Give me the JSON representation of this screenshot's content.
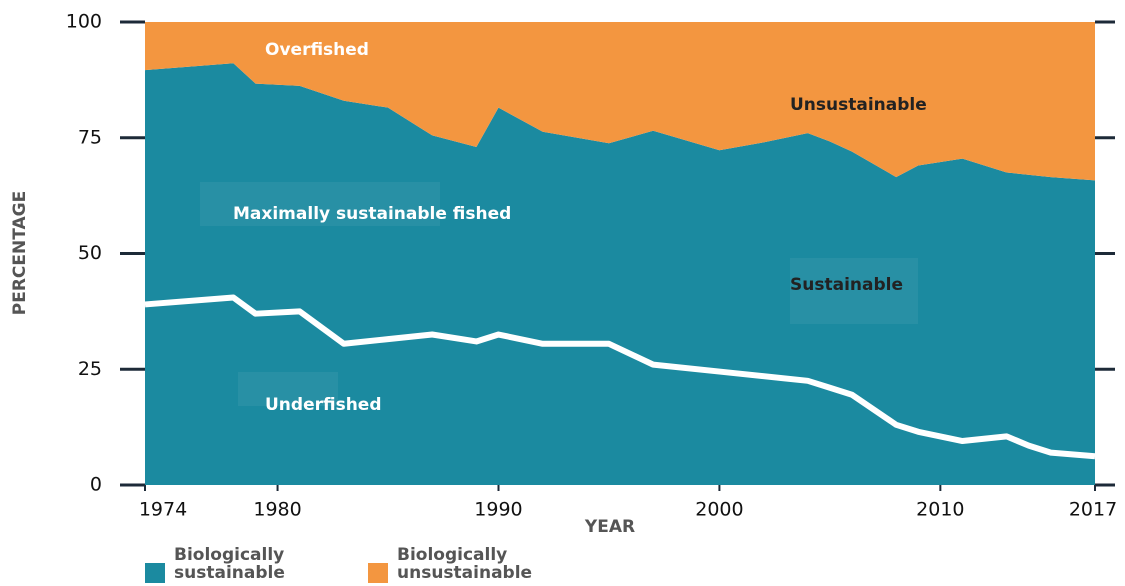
{
  "chart_data": {
    "type": "stacked_area",
    "x": [
      1974,
      1978,
      1979,
      1981,
      1983,
      1985,
      1987,
      1989,
      1990,
      1992,
      1995,
      1997,
      2000,
      2002,
      2004,
      2005,
      2006,
      2008,
      2009,
      2011,
      2013,
      2015,
      2017
    ],
    "series": [
      {
        "name": "Biologically sustainable",
        "color": "#1b8aa0",
        "values": [
          89.6,
          91.1,
          86.7,
          86.2,
          83,
          81.5,
          75.5,
          73,
          81.5,
          76.3,
          73.8,
          76.5,
          72.3,
          74,
          76,
          74.2,
          72,
          66.5,
          69,
          70.5,
          67.5,
          66.5,
          65.8
        ]
      },
      {
        "name": "Biologically unsustainable",
        "color": "#f39640",
        "values": [
          10.4,
          8.9,
          13.3,
          13.8,
          17,
          18.5,
          24.5,
          27,
          18.5,
          23.7,
          26.2,
          23.5,
          27.7,
          26,
          24,
          25.8,
          28,
          33.5,
          31,
          29.5,
          32.5,
          33.5,
          34.2
        ]
      }
    ],
    "underfished_line": {
      "color": "#ffffff",
      "x": [
        1974,
        1978,
        1979,
        1981,
        1983,
        1985,
        1987,
        1989,
        1990,
        1992,
        1995,
        1997,
        2000,
        2004,
        2005,
        2006,
        2008,
        2009,
        2011,
        2013,
        2014,
        2015,
        2017
      ],
      "values": [
        39,
        40.5,
        37,
        37.5,
        30.5,
        31.5,
        32.5,
        31,
        32.5,
        30.5,
        30.5,
        26,
        24.5,
        22.5,
        21,
        19.5,
        13,
        11.5,
        9.5,
        10.5,
        8.5,
        7,
        6.2
      ]
    },
    "annotations": [
      "Overfished",
      "Unsustainable",
      "Maximally sustainable fished",
      "Sustainable",
      "Underfished"
    ],
    "xlabel": "YEAR",
    "ylabel": "PERCENTAGE",
    "xlim": [
      1974,
      2017
    ],
    "xticks": [
      1974,
      1980,
      1990,
      2000,
      2010,
      2017
    ],
    "ylim": [
      0,
      100
    ],
    "yticks": [
      0,
      25,
      50,
      75,
      100
    ]
  }
}
